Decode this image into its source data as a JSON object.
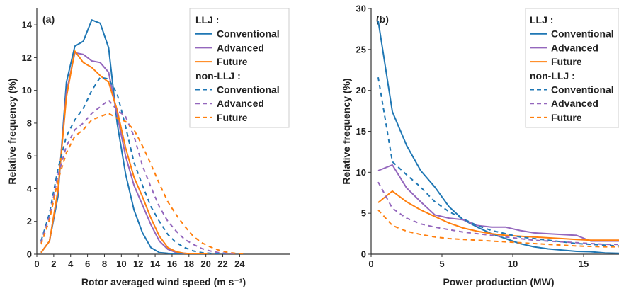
{
  "chart_data": [
    {
      "type": "line",
      "panel_label": "(a)",
      "xlabel": "Rotor averaged wind speed (m s⁻¹)",
      "ylabel": "Relative frequency (%)",
      "xlim": [
        0,
        30
      ],
      "ylim": [
        0,
        15
      ],
      "xticks": [
        0,
        2,
        4,
        6,
        8,
        10,
        12,
        14,
        16,
        18,
        20,
        22,
        24
      ],
      "yticks": [
        0,
        2,
        4,
        6,
        8,
        10,
        12,
        14
      ],
      "grid": false,
      "legend_position": "top-right",
      "legend_groups": [
        "LLJ :",
        "non-LLJ :"
      ],
      "series": [
        {
          "name": "Conventional",
          "group": "LLJ :",
          "color": "#1f77b4",
          "dash": "solid",
          "x": [
            0.5,
            1.5,
            2.5,
            3.5,
            4.5,
            5.5,
            6.5,
            7.5,
            8.5,
            9.5,
            10.5,
            11.5,
            12.5,
            13.5,
            14.5,
            15.5,
            16.5,
            17.5,
            18.5
          ],
          "y": [
            0.1,
            0.8,
            3.5,
            10.5,
            12.7,
            13.0,
            14.3,
            14.1,
            12.6,
            8.0,
            4.9,
            2.7,
            1.3,
            0.4,
            0.1,
            0.05,
            0.02,
            0.0,
            0.0
          ]
        },
        {
          "name": "Advanced",
          "group": "LLJ :",
          "color": "#9467bd",
          "dash": "solid",
          "x": [
            0.5,
            1.5,
            2.5,
            3.5,
            4.5,
            5.5,
            6.5,
            7.5,
            8.5,
            9.5,
            10.5,
            11.5,
            12.5,
            13.5,
            14.5,
            15.5,
            16.5,
            17.5,
            18.5,
            19.5
          ],
          "y": [
            0.1,
            0.8,
            3.8,
            9.9,
            12.3,
            12.2,
            11.8,
            11.7,
            11.1,
            8.5,
            6.0,
            4.2,
            3.0,
            1.8,
            0.8,
            0.3,
            0.1,
            0.05,
            0.0,
            0.0
          ]
        },
        {
          "name": "Future",
          "group": "LLJ :",
          "color": "#ff7f0e",
          "dash": "solid",
          "x": [
            0.5,
            1.5,
            2.5,
            3.5,
            4.5,
            5.5,
            6.5,
            7.5,
            8.5,
            9.5,
            10.5,
            11.5,
            12.5,
            13.5,
            14.5,
            15.5,
            16.5,
            17.5,
            18.5,
            19.5,
            20.5
          ],
          "y": [
            0.1,
            0.8,
            3.9,
            9.6,
            12.4,
            11.7,
            11.4,
            10.9,
            10.5,
            8.8,
            6.5,
            4.7,
            3.5,
            2.2,
            1.1,
            0.4,
            0.15,
            0.05,
            0.02,
            0.0,
            0.0
          ]
        },
        {
          "name": "Conventional",
          "group": "non-LLJ :",
          "color": "#1f77b4",
          "dash": "dashed",
          "x": [
            0.5,
            1.5,
            2.5,
            3.5,
            4.5,
            5.5,
            6.5,
            7.5,
            8.5,
            9.5,
            10.5,
            11.5,
            12.5,
            13.5,
            14.5,
            15.5,
            16.5,
            17.5,
            18.5,
            19.5,
            20.5,
            21.5,
            22.5
          ],
          "y": [
            0.8,
            2.5,
            5.2,
            7.2,
            8.2,
            8.9,
            10.0,
            10.8,
            10.7,
            9.8,
            7.8,
            5.6,
            4.2,
            2.9,
            2.0,
            1.2,
            0.7,
            0.4,
            0.2,
            0.1,
            0.05,
            0.02,
            0.0
          ]
        },
        {
          "name": "Advanced",
          "group": "non-LLJ :",
          "color": "#9467bd",
          "dash": "dashed",
          "x": [
            0.5,
            1.5,
            2.5,
            3.5,
            4.5,
            5.5,
            6.5,
            7.5,
            8.5,
            9.5,
            10.5,
            11.5,
            12.5,
            13.5,
            14.5,
            15.5,
            16.5,
            17.5,
            18.5,
            19.5,
            20.5,
            21.5,
            22.5,
            23.5
          ],
          "y": [
            0.7,
            2.3,
            4.8,
            6.6,
            7.6,
            8.0,
            8.6,
            9.0,
            9.4,
            8.8,
            8.4,
            7.2,
            5.4,
            4.1,
            2.9,
            2.0,
            1.4,
            0.9,
            0.6,
            0.35,
            0.2,
            0.1,
            0.05,
            0.0
          ]
        },
        {
          "name": "Future",
          "group": "non-LLJ :",
          "color": "#ff7f0e",
          "dash": "dashed",
          "x": [
            0.5,
            1.5,
            2.5,
            3.5,
            4.5,
            5.5,
            6.5,
            7.5,
            8.5,
            9.5,
            10.5,
            11.5,
            12.5,
            13.5,
            14.5,
            15.5,
            16.5,
            17.5,
            18.5,
            19.5,
            20.5,
            21.5,
            22.5,
            23.5,
            24.5
          ],
          "y": [
            0.6,
            2.1,
            4.5,
            6.2,
            7.2,
            7.6,
            8.2,
            8.4,
            8.6,
            8.3,
            8.1,
            7.6,
            6.6,
            5.5,
            4.3,
            3.2,
            2.4,
            1.7,
            1.1,
            0.7,
            0.45,
            0.25,
            0.12,
            0.05,
            0.0
          ]
        }
      ]
    },
    {
      "type": "line",
      "panel_label": "(b)",
      "xlabel": "Power production (MW)",
      "ylabel": "Relative frequency (%)",
      "xlim": [
        0,
        17.5
      ],
      "ylim": [
        0,
        30
      ],
      "xticks": [
        0,
        5,
        10,
        15
      ],
      "yticks": [
        0,
        5,
        10,
        15,
        20,
        25,
        30
      ],
      "grid": false,
      "legend_position": "top-right",
      "legend_groups": [
        "LLJ :",
        "non-LLJ :"
      ],
      "series": [
        {
          "name": "Conventional",
          "group": "LLJ :",
          "color": "#1f77b4",
          "dash": "solid",
          "x": [
            0.5,
            1.5,
            2.5,
            3.5,
            4.5,
            5.5,
            6.5,
            7.5,
            8.5,
            9.5,
            10.5,
            11.5,
            12.5,
            13.5,
            14.5,
            15.5,
            16.5,
            17.5
          ],
          "y": [
            28.5,
            17.4,
            13.3,
            10.2,
            8.2,
            5.8,
            4.2,
            3.3,
            2.5,
            1.9,
            1.3,
            0.9,
            0.65,
            0.5,
            0.35,
            0.3,
            0.15,
            0.1
          ]
        },
        {
          "name": "Advanced",
          "group": "LLJ :",
          "color": "#9467bd",
          "dash": "solid",
          "x": [
            0.5,
            1.5,
            2.5,
            3.5,
            4.5,
            5.5,
            6.5,
            7.5,
            8.5,
            9.5,
            10.5,
            11.5,
            12.5,
            13.5,
            14.5,
            15.5,
            16.5,
            17.5
          ],
          "y": [
            10.2,
            10.9,
            8.1,
            6.4,
            4.8,
            4.4,
            4.2,
            3.5,
            3.3,
            3.3,
            2.9,
            2.6,
            2.5,
            2.4,
            2.3,
            1.6,
            1.6,
            1.6
          ]
        },
        {
          "name": "Future",
          "group": "LLJ :",
          "color": "#ff7f0e",
          "dash": "solid",
          "x": [
            0.5,
            1.5,
            2.5,
            3.5,
            4.5,
            5.5,
            6.5,
            7.5,
            8.5,
            9.5,
            10.5,
            11.5,
            12.5,
            13.5,
            14.5,
            15.5,
            16.5,
            17.5
          ],
          "y": [
            6.3,
            7.7,
            6.4,
            5.4,
            4.6,
            3.8,
            3.2,
            2.8,
            2.5,
            2.3,
            2.2,
            2.1,
            2.0,
            1.9,
            1.8,
            1.7,
            1.7,
            1.7
          ]
        },
        {
          "name": "Conventional",
          "group": "non-LLJ :",
          "color": "#1f77b4",
          "dash": "dashed",
          "x": [
            0.5,
            1.5,
            2.5,
            3.5,
            4.5,
            5.5,
            6.5,
            7.5,
            8.5,
            9.5,
            10.5,
            11.5,
            12.5,
            13.5,
            14.5,
            15.5,
            16.5,
            17.5
          ],
          "y": [
            21.6,
            11.3,
            9.7,
            8.2,
            6.4,
            5.2,
            4.3,
            3.5,
            2.9,
            2.5,
            2.1,
            1.9,
            1.7,
            1.5,
            1.3,
            1.2,
            1.1,
            1.0
          ]
        },
        {
          "name": "Advanced",
          "group": "non-LLJ :",
          "color": "#9467bd",
          "dash": "dashed",
          "x": [
            0.5,
            1.5,
            2.5,
            3.5,
            4.5,
            5.5,
            6.5,
            7.5,
            8.5,
            9.5,
            10.5,
            11.5,
            12.5,
            13.5,
            14.5,
            15.5,
            16.5,
            17.5
          ],
          "y": [
            8.8,
            5.6,
            4.4,
            3.7,
            3.3,
            3.0,
            2.7,
            2.5,
            2.3,
            2.1,
            1.9,
            1.7,
            1.6,
            1.5,
            1.4,
            1.3,
            1.2,
            1.2
          ]
        },
        {
          "name": "Future",
          "group": "non-LLJ :",
          "color": "#ff7f0e",
          "dash": "dashed",
          "x": [
            0.5,
            1.5,
            2.5,
            3.5,
            4.5,
            5.5,
            6.5,
            7.5,
            8.5,
            9.5,
            10.5,
            11.5,
            12.5,
            13.5,
            14.5,
            15.5,
            16.5,
            17.5
          ],
          "y": [
            5.4,
            3.5,
            2.8,
            2.4,
            2.1,
            1.9,
            1.8,
            1.7,
            1.6,
            1.5,
            1.4,
            1.3,
            1.2,
            1.1,
            1.0,
            0.95,
            0.9,
            0.9
          ]
        }
      ]
    }
  ]
}
